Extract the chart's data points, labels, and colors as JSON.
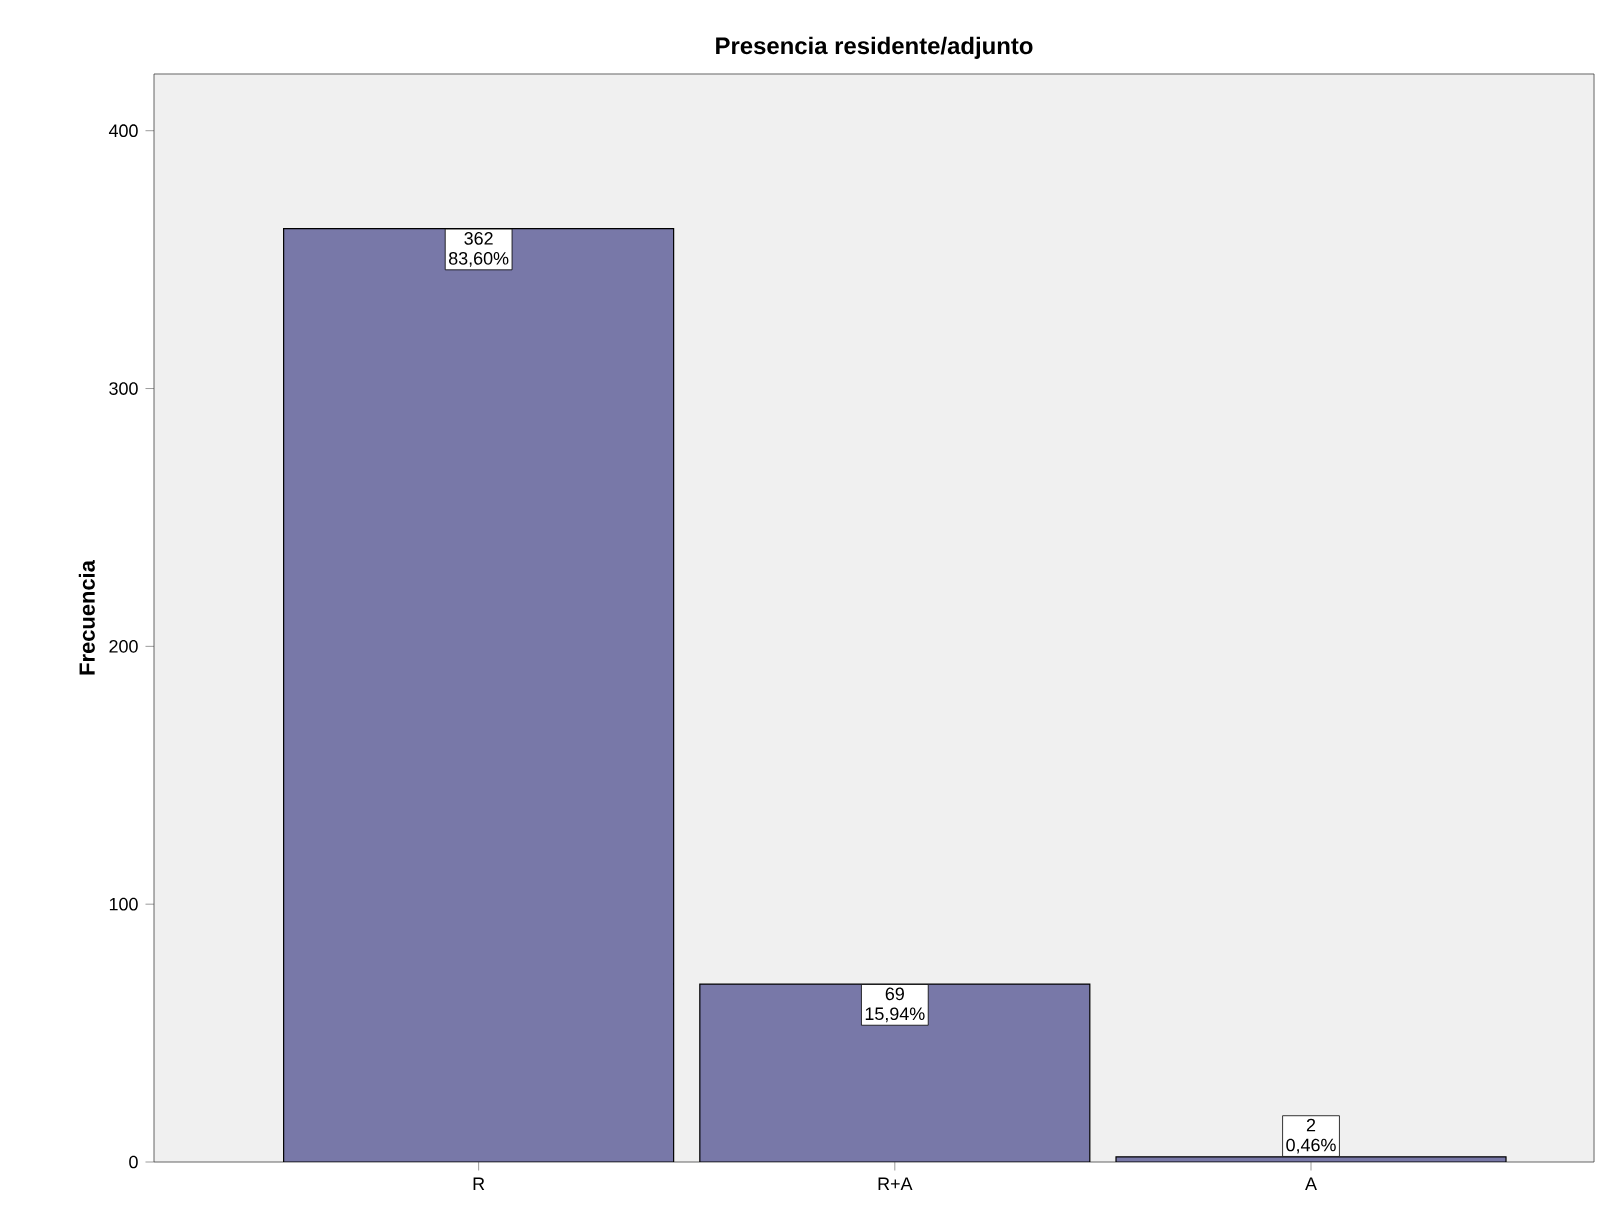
{
  "chart_data": {
    "type": "bar",
    "title": "Presencia residente/adjunto",
    "ylabel": "Frecuencia",
    "categories": [
      "R",
      "R+A",
      "A"
    ],
    "values": [
      362,
      69,
      2
    ],
    "value_labels": [
      "362",
      "69",
      "2"
    ],
    "annotations": [
      {
        "text": "83,60%",
        "x": "R",
        "y": 362
      },
      {
        "text": "15,94%",
        "x": "R+A",
        "y": 69
      },
      {
        "text": "0,46%",
        "x": "A",
        "y": 2
      }
    ],
    "color": "#7878a8",
    "ylim": [
      0,
      422
    ],
    "yticks": [
      0,
      100,
      200,
      300,
      400
    ],
    "grid": false
  }
}
